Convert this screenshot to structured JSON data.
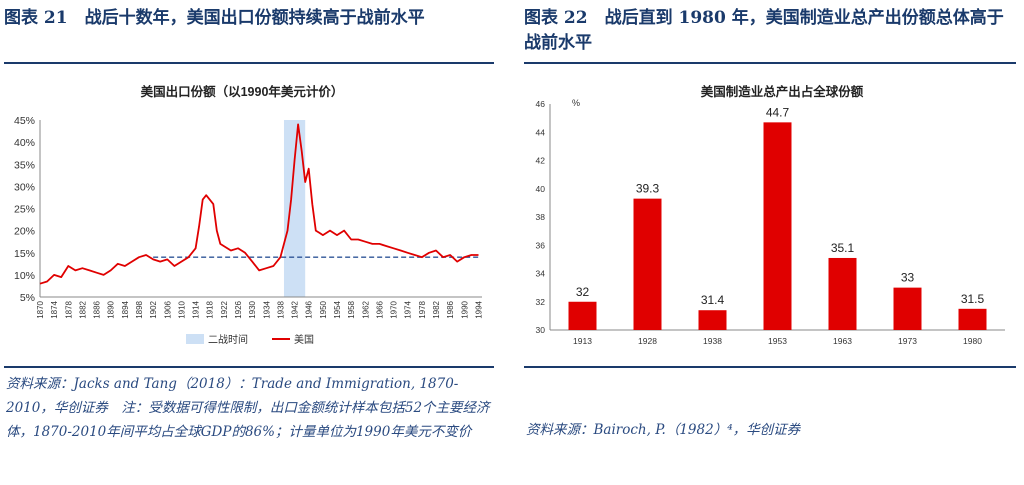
{
  "left": {
    "figure_title": "图表 21　战后十数年，美国出口份额持续高于战前水平",
    "source_note": "资料来源：Jacks and Tang（2018）：Trade and Immigration, 1870-2010，华创证券　注：受数据可得性限制，出口金额统计样本包括52个主要经济体，1870-2010年间平均占全球GDP的86%；计量单位为1990年美元不变价"
  },
  "right": {
    "figure_title": "图表 22　战后直到 1980 年，美国制造业总产出份额总体高于战前水平",
    "source_note": "资料来源：Bairoch, P.（1982）⁴，华创证券"
  },
  "colors": {
    "accent": "#1a3a6b",
    "bar": "#e00000",
    "line": "#e00000",
    "shade": "#cde0f5",
    "dashed": "#2f5597"
  },
  "chart_data": [
    {
      "type": "line",
      "title": "美国出口份额（以1990年美元计价）",
      "ylim": [
        5,
        45
      ],
      "y_ticks": [
        "5%",
        "10%",
        "15%",
        "20%",
        "25%",
        "30%",
        "35%",
        "40%",
        "45%"
      ],
      "x_tick_labels": [
        "1870",
        "1874",
        "1878",
        "1882",
        "1886",
        "1890",
        "1894",
        "1898",
        "1902",
        "1906",
        "1910",
        "1914",
        "1918",
        "1922",
        "1926",
        "1930",
        "1934",
        "1938",
        "1942",
        "1946",
        "1950",
        "1954",
        "1958",
        "1962",
        "1966",
        "1970",
        "1974",
        "1978",
        "1982",
        "1986",
        "1990",
        "1994"
      ],
      "shaded_range": [
        1939,
        1945
      ],
      "reference_level": 14,
      "legend": [
        "二战时间",
        "美国"
      ],
      "series": [
        {
          "name": "美国",
          "x": [
            1870,
            1872,
            1874,
            1876,
            1878,
            1880,
            1882,
            1884,
            1886,
            1888,
            1890,
            1892,
            1894,
            1896,
            1898,
            1900,
            1902,
            1904,
            1906,
            1908,
            1910,
            1912,
            1914,
            1915,
            1916,
            1917,
            1918,
            1919,
            1920,
            1921,
            1922,
            1924,
            1926,
            1928,
            1930,
            1932,
            1934,
            1936,
            1938,
            1940,
            1941,
            1942,
            1943,
            1944,
            1945,
            1946,
            1947,
            1948,
            1949,
            1950,
            1952,
            1954,
            1956,
            1958,
            1960,
            1962,
            1964,
            1966,
            1968,
            1970,
            1972,
            1974,
            1976,
            1978,
            1980,
            1982,
            1984,
            1986,
            1988,
            1990,
            1992,
            1994
          ],
          "y": [
            8,
            8.5,
            10,
            9.5,
            12,
            11,
            11.5,
            11,
            10.5,
            10,
            11,
            12.5,
            12,
            13,
            14,
            14.5,
            13.5,
            13,
            13.5,
            12,
            13,
            14,
            16,
            21,
            27,
            28,
            27,
            26,
            20,
            17,
            16.5,
            15.5,
            16,
            15,
            13,
            11,
            11.5,
            12,
            14,
            20,
            27,
            36,
            44,
            38,
            31,
            34,
            26,
            20,
            19.5,
            19,
            20,
            19,
            20,
            18,
            18,
            17.5,
            17,
            17,
            16.5,
            16,
            15.5,
            15,
            14.5,
            14,
            15,
            15.5,
            14,
            14.5,
            13,
            14,
            14.5,
            14.5
          ]
        }
      ]
    },
    {
      "type": "bar",
      "title": "美国制造业总产出占全球份额",
      "ylabel": "%",
      "ylim": [
        30,
        46
      ],
      "y_ticks": [
        30,
        32,
        34,
        36,
        38,
        40,
        42,
        44,
        46
      ],
      "categories": [
        "1913",
        "1928",
        "1938",
        "1953",
        "1963",
        "1973",
        "1980"
      ],
      "values": [
        32,
        39.3,
        31.4,
        44.7,
        35.1,
        33,
        31.5
      ],
      "value_labels": [
        "32",
        "39.3",
        "31.4",
        "44.7",
        "35.1",
        "33",
        "31.5"
      ]
    }
  ]
}
